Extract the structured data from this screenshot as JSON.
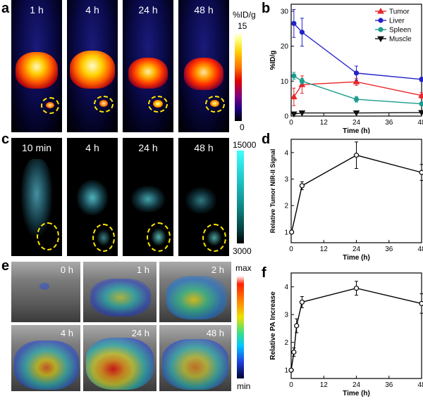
{
  "panel_labels": {
    "a": "a",
    "b": "b",
    "c": "c",
    "d": "d",
    "e": "e",
    "f": "f"
  },
  "panel_a": {
    "time_labels": [
      "1 h",
      "4 h",
      "24 h",
      "48 h"
    ],
    "colorbar_unit": "%ID/g",
    "colorbar_max": "15",
    "colorbar_min": "0"
  },
  "panel_c": {
    "time_labels": [
      "10 min",
      "4 h",
      "24 h",
      "48 h"
    ],
    "colorbar_max": "15000",
    "colorbar_min": "3000"
  },
  "panel_e": {
    "time_labels": [
      "0 h",
      "1 h",
      "2 h",
      "4 h",
      "24 h",
      "48 h"
    ],
    "colorbar_max": "max",
    "colorbar_min": "min"
  },
  "chart_data": [
    {
      "panel": "b",
      "type": "line",
      "xlabel": "Time (h)",
      "ylabel": "%ID/g",
      "xlim": [
        0,
        48
      ],
      "ylim": [
        0,
        32
      ],
      "xticks": [
        0,
        12,
        24,
        36,
        48
      ],
      "yticks": [
        0,
        10,
        20,
        30
      ],
      "legend_position": "top-right",
      "series": [
        {
          "name": "Tumor",
          "color": "#e8262b",
          "marker": "triangle-up",
          "x": [
            1,
            4,
            24,
            48
          ],
          "y": [
            5.5,
            9.0,
            9.8,
            5.9
          ],
          "err": [
            2.5,
            2.5,
            1.0,
            0.8
          ]
        },
        {
          "name": "Liver",
          "color": "#2323c9",
          "marker": "circle",
          "x": [
            1,
            4,
            24,
            48
          ],
          "y": [
            26.5,
            24.0,
            12.3,
            10.5
          ],
          "err": [
            4.0,
            4.0,
            2.0,
            0.6
          ]
        },
        {
          "name": "Spleen",
          "color": "#1c9c8c",
          "marker": "circle",
          "x": [
            1,
            4,
            24,
            48
          ],
          "y": [
            11.5,
            10.0,
            4.8,
            3.5
          ],
          "err": [
            1.0,
            0.8,
            0.8,
            0.3
          ]
        },
        {
          "name": "Muscle",
          "color": "#111111",
          "marker": "triangle-down",
          "x": [
            1,
            4,
            24,
            48
          ],
          "y": [
            0.6,
            0.9,
            0.9,
            1.0
          ],
          "err": [
            0.1,
            0.1,
            0.1,
            0.1
          ]
        }
      ]
    },
    {
      "panel": "d",
      "type": "line",
      "xlabel": "Time (h)",
      "ylabel": "Relative Tumor NIR-II Signal",
      "xlim": [
        0,
        48
      ],
      "ylim": [
        0.6,
        4.5
      ],
      "xticks": [
        0,
        12,
        24,
        36,
        48
      ],
      "yticks": [
        1,
        2,
        3,
        4
      ],
      "series": [
        {
          "color": "#000000",
          "marker": "circle",
          "x": [
            0.17,
            4,
            24,
            48
          ],
          "y": [
            1.0,
            2.75,
            3.9,
            3.25
          ],
          "err": [
            0.05,
            0.15,
            0.5,
            0.3
          ]
        }
      ]
    },
    {
      "panel": "f",
      "type": "line",
      "xlabel": "Time (h)",
      "ylabel": "Relative PA Increase",
      "xlim": [
        0,
        48
      ],
      "ylim": [
        0.7,
        4.5
      ],
      "xticks": [
        0,
        12,
        24,
        36,
        48
      ],
      "yticks": [
        1,
        2,
        3,
        4
      ],
      "series": [
        {
          "color": "#000000",
          "marker": "circle",
          "x": [
            0,
            1,
            2,
            4,
            24,
            48
          ],
          "y": [
            1.0,
            1.65,
            2.6,
            3.45,
            3.95,
            3.4
          ],
          "err": [
            0.05,
            0.15,
            0.25,
            0.2,
            0.25,
            0.35
          ]
        }
      ]
    }
  ]
}
